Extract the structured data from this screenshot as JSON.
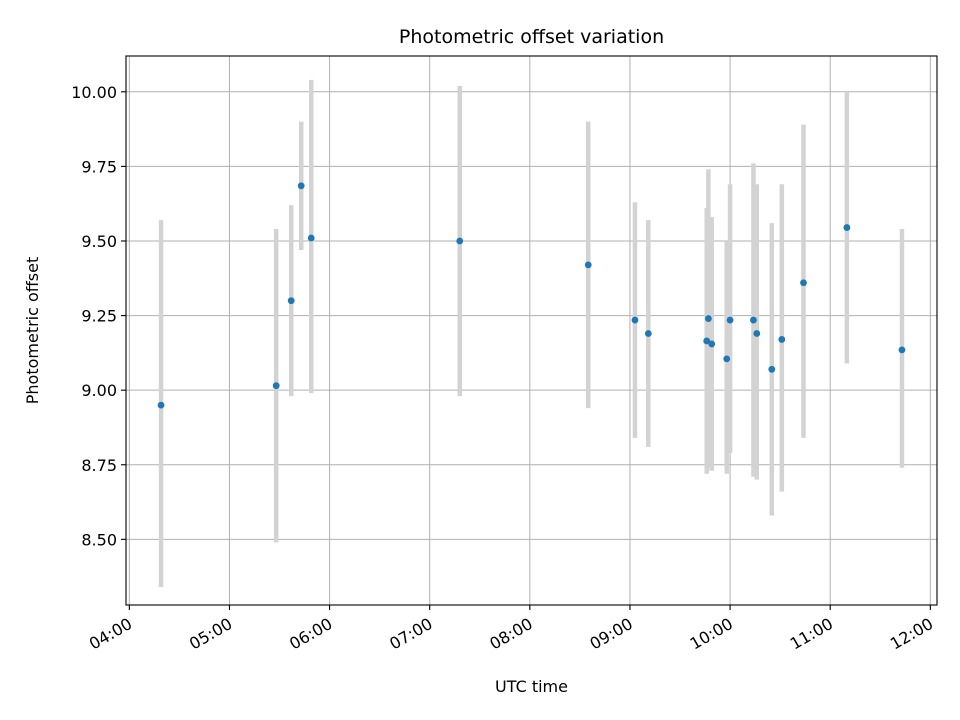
{
  "chart_data": {
    "type": "scatter",
    "title": "Photometric offset variation",
    "xlabel": "UTC time",
    "ylabel": "Photometric offset",
    "xlim": [
      "03:58",
      "12:04"
    ],
    "ylim": [
      8.28,
      10.12
    ],
    "xticks": [
      "04:00",
      "05:00",
      "06:00",
      "07:00",
      "08:00",
      "09:00",
      "10:00",
      "11:00",
      "12:00"
    ],
    "yticks": [
      8.5,
      8.75,
      9.0,
      9.25,
      9.5,
      9.75,
      10.0
    ],
    "grid": true,
    "colors": {
      "point": "#1f77b4",
      "errorbar": "#d3d3d3",
      "grid": "#b0b0b0"
    },
    "points": [
      {
        "x": "04:19",
        "y": 8.95,
        "low": 8.34,
        "high": 9.57
      },
      {
        "x": "05:28",
        "y": 9.015,
        "low": 8.49,
        "high": 9.54
      },
      {
        "x": "05:37",
        "y": 9.3,
        "low": 8.98,
        "high": 9.62
      },
      {
        "x": "05:43",
        "y": 9.685,
        "low": 9.47,
        "high": 9.9
      },
      {
        "x": "05:49",
        "y": 9.51,
        "low": 8.99,
        "high": 10.04
      },
      {
        "x": "07:18",
        "y": 9.5,
        "low": 8.98,
        "high": 10.02
      },
      {
        "x": "08:35",
        "y": 9.42,
        "low": 8.94,
        "high": 9.9
      },
      {
        "x": "09:03",
        "y": 9.235,
        "low": 8.84,
        "high": 9.63
      },
      {
        "x": "09:11",
        "y": 9.19,
        "low": 8.81,
        "high": 9.57
      },
      {
        "x": "09:46",
        "y": 9.165,
        "low": 8.72,
        "high": 9.61
      },
      {
        "x": "09:47",
        "y": 9.24,
        "low": 8.74,
        "high": 9.74
      },
      {
        "x": "09:49",
        "y": 9.155,
        "low": 8.73,
        "high": 9.58
      },
      {
        "x": "09:58",
        "y": 9.105,
        "low": 8.72,
        "high": 9.5
      },
      {
        "x": "10:00",
        "y": 9.235,
        "low": 8.79,
        "high": 9.69
      },
      {
        "x": "10:14",
        "y": 9.235,
        "low": 8.71,
        "high": 9.76
      },
      {
        "x": "10:16",
        "y": 9.19,
        "low": 8.7,
        "high": 9.69
      },
      {
        "x": "10:25",
        "y": 9.07,
        "low": 8.58,
        "high": 9.56
      },
      {
        "x": "10:31",
        "y": 9.17,
        "low": 8.66,
        "high": 9.69
      },
      {
        "x": "10:44",
        "y": 9.36,
        "low": 8.84,
        "high": 9.89
      },
      {
        "x": "11:10",
        "y": 9.545,
        "low": 9.09,
        "high": 10.0
      },
      {
        "x": "11:43",
        "y": 9.135,
        "low": 8.74,
        "high": 9.54
      }
    ]
  }
}
